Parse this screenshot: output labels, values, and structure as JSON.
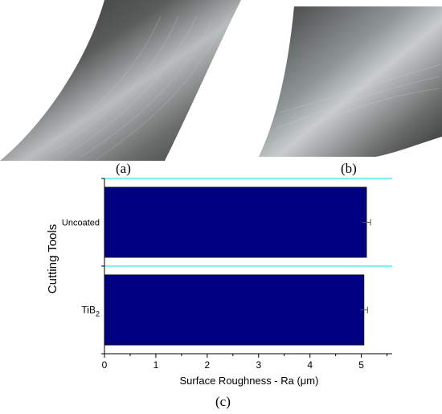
{
  "panels": {
    "a": "(a)",
    "b": "(b)",
    "c": "(c)"
  },
  "colors": {
    "bar": "#000080",
    "separator": "#00e5e5",
    "photo_dark": "#3a3a3a",
    "photo_light": "#bfc3c3"
  },
  "chart_data": {
    "type": "bar",
    "orientation": "horizontal",
    "categories": [
      "Uncoated",
      "TiB2"
    ],
    "category_labels": [
      {
        "text": "Uncoated",
        "sub": ""
      },
      {
        "text": "TiB",
        "sub": "2"
      }
    ],
    "values": [
      5.1,
      5.05
    ],
    "errors": [
      0.08,
      0.07
    ],
    "xlabel": "Surface Roughness - Ra (μm)",
    "ylabel": "Cutting Tools",
    "xlim": [
      0,
      5.6
    ],
    "xticks": [
      0,
      1,
      2,
      3,
      4,
      5
    ],
    "grid": false,
    "legend": "none"
  }
}
